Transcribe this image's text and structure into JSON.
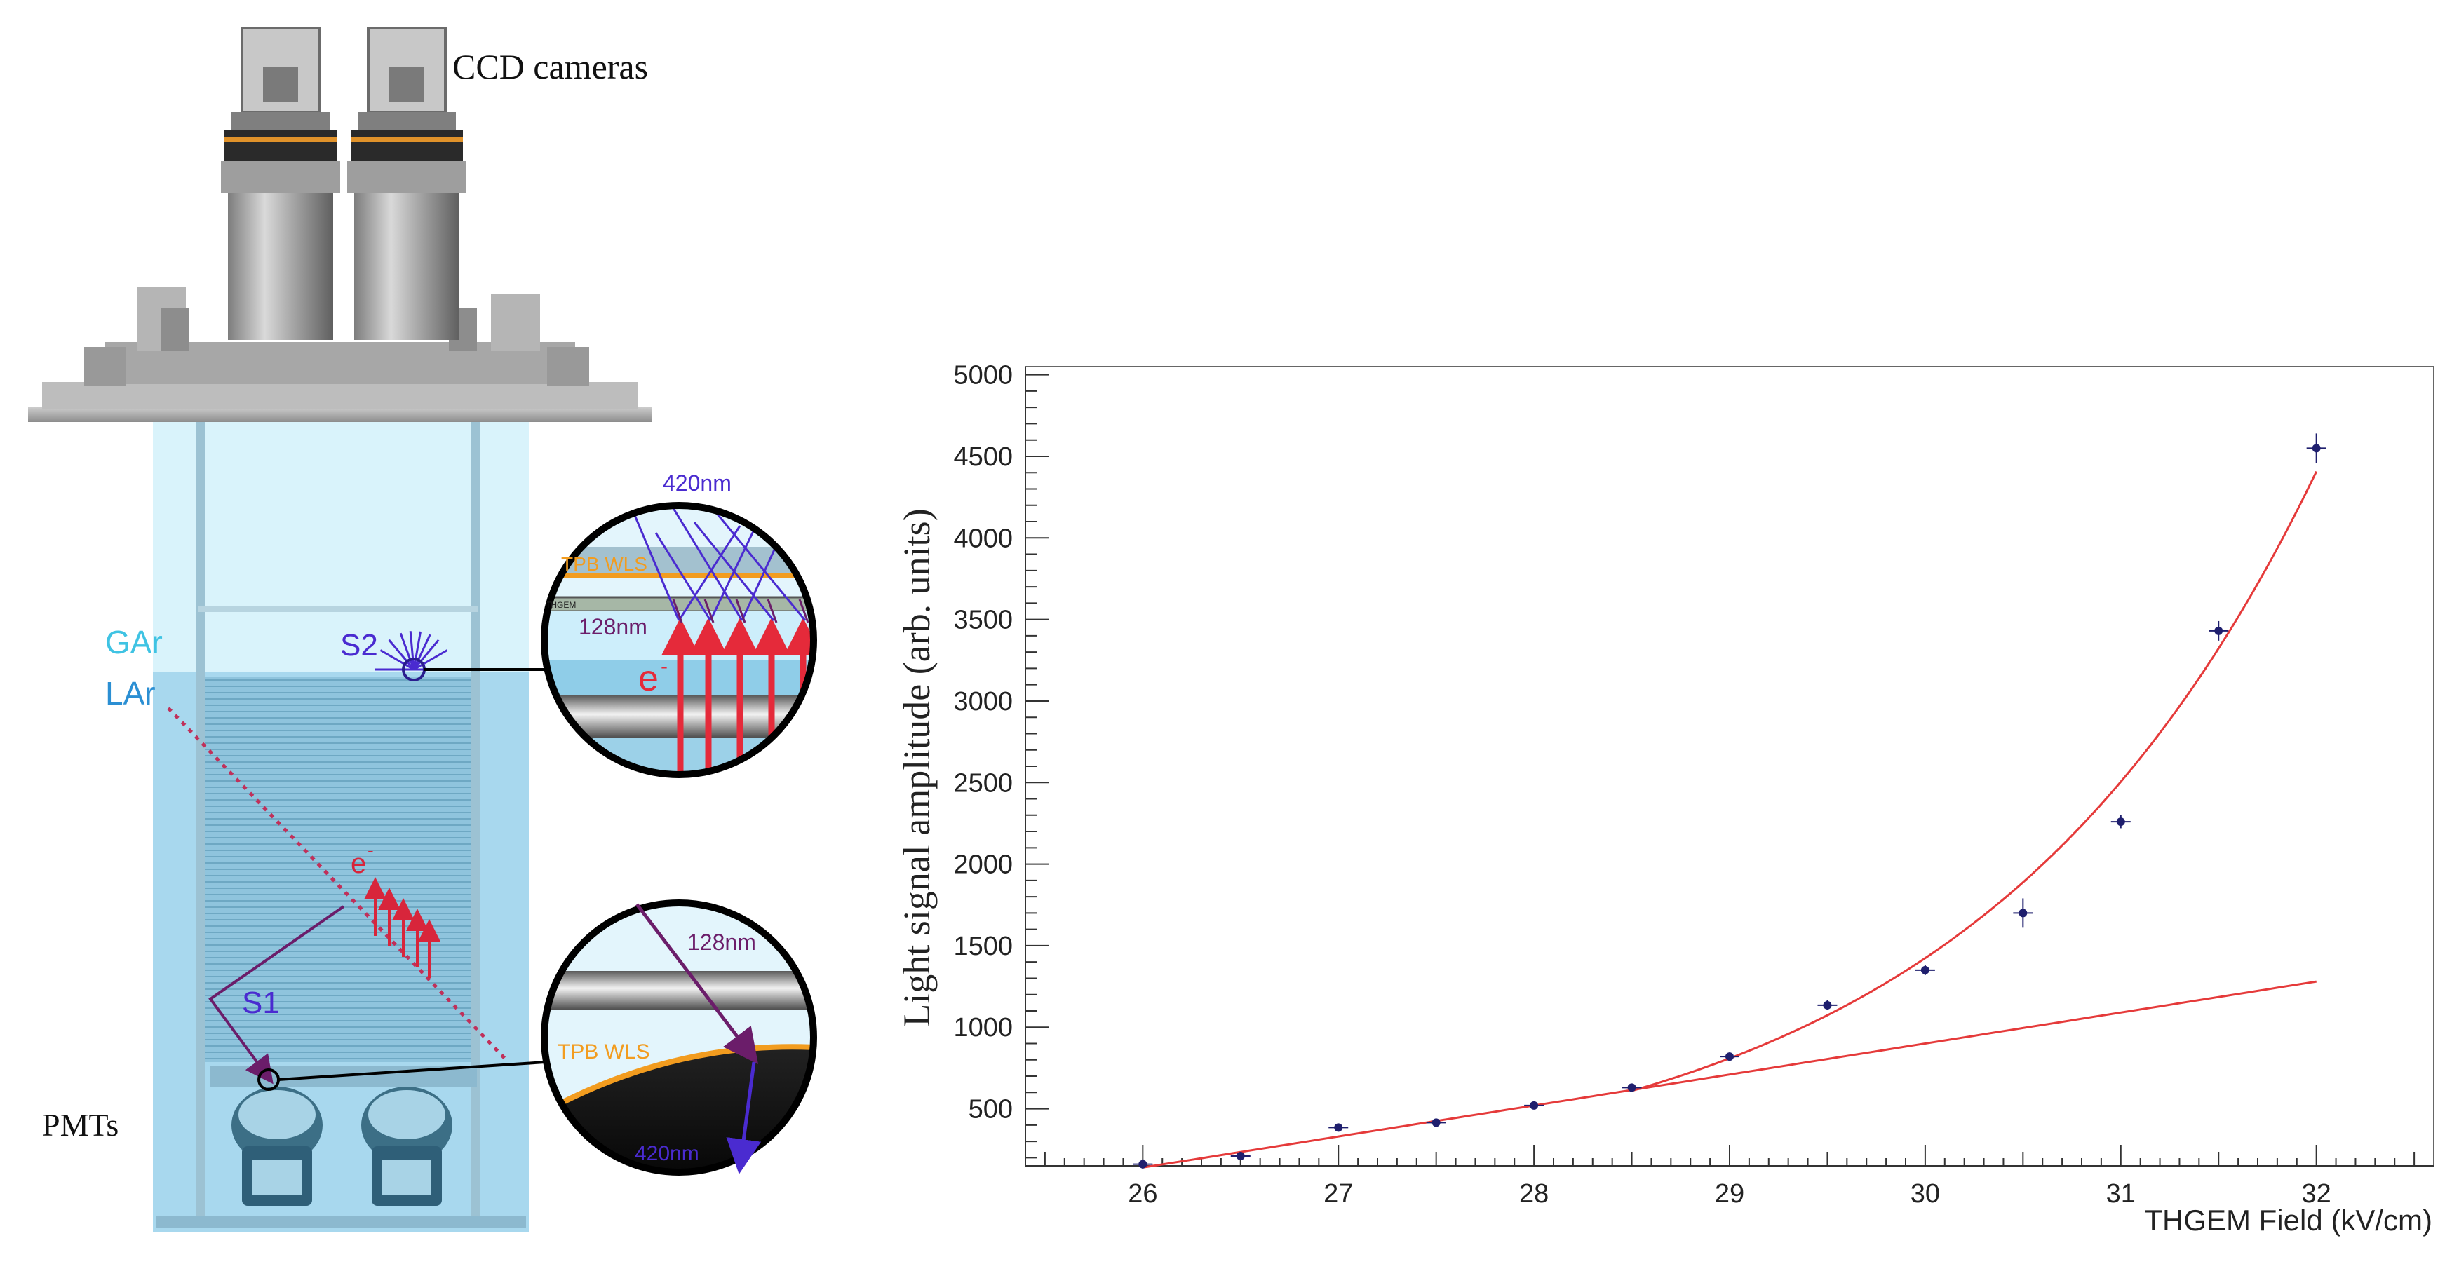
{
  "left_panel": {
    "ccd_label": "CCD cameras",
    "pmt_label": "PMTs",
    "gar_label": "GAr",
    "lar_label": "LAr",
    "s1_label": "S1",
    "s2_label": "S2",
    "electron_label": "e",
    "electron_superscript": "-",
    "top_inset": {
      "wavelength_out": "420nm",
      "wavelength_in": "128nm",
      "tpb_label": "TPB WLS",
      "thgem_label": "THGEM",
      "electron_label": "e",
      "electron_superscript": "-"
    },
    "bottom_inset": {
      "wavelength_in": "128nm",
      "tpb_label": "TPB WLS",
      "wavelength_out": "420nm"
    },
    "colors": {
      "gar": "#3fc3e3",
      "lar": "#2b8fd3",
      "s_label": "#4a2bd0",
      "electron": "#d8253b",
      "tpb": "#f29c1f",
      "wavelength_128": "#6b1d6a",
      "wavelength_420": "#4a2bd0"
    }
  },
  "chart_data": {
    "type": "scatter",
    "xlabel": "THGEM Field (kV/cm)",
    "ylabel": "Light signal amplitude (arb. units)",
    "xlim": [
      25.4,
      32.6
    ],
    "ylim": [
      150,
      5050
    ],
    "xticks": [
      26,
      27,
      28,
      29,
      30,
      31,
      32
    ],
    "yticks": [
      500,
      1000,
      1500,
      2000,
      2500,
      3000,
      3500,
      4000,
      4500,
      5000
    ],
    "points": [
      {
        "x": 26.0,
        "y": 160,
        "yerr": 30
      },
      {
        "x": 26.5,
        "y": 210,
        "yerr": 20
      },
      {
        "x": 27.0,
        "y": 385,
        "yerr": 25
      },
      {
        "x": 27.5,
        "y": 415,
        "yerr": 25
      },
      {
        "x": 28.0,
        "y": 520,
        "yerr": 20
      },
      {
        "x": 28.5,
        "y": 630,
        "yerr": 20
      },
      {
        "x": 29.0,
        "y": 820,
        "yerr": 25
      },
      {
        "x": 29.5,
        "y": 1135,
        "yerr": 30
      },
      {
        "x": 30.0,
        "y": 1350,
        "yerr": 30
      },
      {
        "x": 30.5,
        "y": 1700,
        "yerr": 90
      },
      {
        "x": 31.0,
        "y": 2260,
        "yerr": 40
      },
      {
        "x": 31.5,
        "y": 3430,
        "yerr": 60
      },
      {
        "x": 32.0,
        "y": 4550,
        "yerr": 90
      }
    ],
    "fits": [
      {
        "kind": "linear",
        "x_range": [
          26.0,
          32.0
        ],
        "at_x0": 140,
        "slope": 190
      },
      {
        "kind": "exponential",
        "x_range": [
          28.5,
          32.0
        ],
        "at_x0": 610,
        "x0": 28.5,
        "rate": 0.565
      }
    ],
    "colors": {
      "points": "#1f1f6e",
      "fit": "#e53a3a",
      "axis": "#333333"
    }
  }
}
